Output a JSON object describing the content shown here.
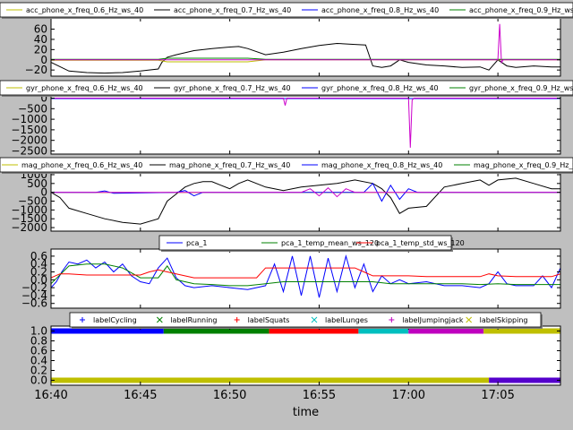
{
  "figure": {
    "background": "#bfbfbf",
    "axes_background": "#ffffff"
  },
  "chart_data": [
    {
      "type": "line",
      "id": "acc",
      "ylim": [
        -32,
        82
      ],
      "yticks": [
        -20,
        0,
        20,
        40,
        60
      ],
      "ytick_labels": [
        "−20",
        "0",
        "20",
        "40",
        "60"
      ],
      "legend": [
        {
          "name": "acc_phone_x_freq_0.6_Hz_ws_40",
          "color": "#bfbf00"
        },
        {
          "name": "acc_phone_x_freq_0.7_Hz_ws_40",
          "color": "#000000"
        },
        {
          "name": "acc_phone_x_freq_0.8_Hz_ws_40",
          "color": "#0000ff"
        },
        {
          "name": "acc_phone_x_freq_0.9_Hz_ws_40",
          "color": "#008000"
        }
      ],
      "series": [
        {
          "name": "acc_phone_x_freq_0.7_Hz_ws_40",
          "color": "#000000",
          "x": [
            0,
            1,
            2,
            3,
            4,
            5,
            6,
            6.2,
            6.5,
            7,
            8,
            9,
            10,
            10.5,
            11,
            12,
            13,
            14,
            15,
            16,
            17,
            17.6,
            18,
            18.5,
            19,
            19.5,
            20,
            21,
            22,
            23,
            24,
            24.5,
            25,
            25.5,
            26,
            27,
            28,
            28.5
          ],
          "y": [
            -5,
            -22,
            -25,
            -26,
            -25,
            -22,
            -18,
            -5,
            5,
            10,
            18,
            22,
            25,
            26,
            22,
            10,
            15,
            22,
            28,
            32,
            30,
            29,
            -12,
            -15,
            -12,
            0,
            -5,
            -10,
            -12,
            -15,
            -14,
            -20,
            0,
            -12,
            -15,
            -12,
            -14,
            -14
          ]
        },
        {
          "name": "acc_phone_x_freq_0.6_Hz_ws_40",
          "color": "#bfbf00",
          "x": [
            0,
            6,
            6.5,
            11,
            12,
            28.5
          ],
          "y": [
            -1,
            -1,
            -4,
            -4,
            0,
            0
          ]
        },
        {
          "name": "acc_phone_x_freq_0.9_Hz_ws_40",
          "color": "#008000",
          "x": [
            0,
            6,
            6.5,
            11,
            12,
            28.5
          ],
          "y": [
            1,
            1,
            3,
            3,
            1,
            1
          ]
        },
        {
          "name": "magenta",
          "color": "#cc00cc",
          "x": [
            0,
            25.0,
            25.1,
            25.2,
            25.3,
            28.5
          ],
          "y": [
            0,
            0,
            70,
            -5,
            0,
            0
          ]
        }
      ]
    },
    {
      "type": "line",
      "id": "gyr",
      "ylim": [
        -2650,
        150
      ],
      "yticks": [
        -2500,
        -2000,
        -1500,
        -1000,
        -500,
        0
      ],
      "ytick_labels": [
        "−2500",
        "−2000",
        "−1500",
        "−1000",
        "−500",
        "0"
      ],
      "legend": [
        {
          "name": "gyr_phone_x_freq_0.6_Hz_ws_40",
          "color": "#bfbf00"
        },
        {
          "name": "gyr_phone_x_freq_0.7_Hz_ws_40",
          "color": "#000000"
        },
        {
          "name": "gyr_phone_x_freq_0.8_Hz_ws_40",
          "color": "#0000ff"
        },
        {
          "name": "gyr_phone_x_freq_0.9_Hz_ws_40",
          "color": "#008000"
        }
      ],
      "series": [
        {
          "name": "gyr_phone_x_freq_0.8_Hz_ws_40",
          "color": "#0000ff",
          "x": [
            0,
            28.5
          ],
          "y": [
            -20,
            -20
          ]
        },
        {
          "name": "magenta",
          "color": "#cc00cc",
          "x": [
            0,
            13.0,
            13.1,
            13.2,
            20.0,
            20.1,
            20.2,
            20.3,
            28.5
          ],
          "y": [
            0,
            0,
            -350,
            0,
            0,
            -2350,
            -100,
            0,
            0
          ]
        }
      ]
    },
    {
      "type": "line",
      "id": "mag",
      "ylim": [
        -2200,
        1100
      ],
      "yticks": [
        -2000,
        -1500,
        -1000,
        -500,
        0,
        500,
        1000
      ],
      "ytick_labels": [
        "−2000",
        "−1500",
        "−1000",
        "−500",
        "0",
        "500",
        "1000"
      ],
      "legend": [
        {
          "name": "mag_phone_x_freq_0.6_Hz_ws_40",
          "color": "#bfbf00"
        },
        {
          "name": "mag_phone_x_freq_0.7_Hz_ws_40",
          "color": "#000000"
        },
        {
          "name": "mag_phone_x_freq_0.8_Hz_ws_40",
          "color": "#0000ff"
        },
        {
          "name": "mag_phone_x_freq_0.9_Hz_ws_40",
          "color": "#008000"
        }
      ],
      "series": [
        {
          "name": "mag_phone_x_freq_0.7_Hz_ws_40",
          "color": "#000000",
          "x": [
            0,
            0.5,
            1,
            2,
            3,
            4,
            5,
            6,
            6.5,
            7,
            7.5,
            8,
            8.5,
            9,
            9.5,
            10,
            10.5,
            11,
            12,
            13,
            14,
            15,
            16,
            17,
            18,
            18.5,
            19,
            19.5,
            20,
            21,
            22,
            23,
            24,
            24.5,
            25,
            26,
            27,
            28,
            28.5
          ],
          "y": [
            0,
            -300,
            -900,
            -1200,
            -1500,
            -1700,
            -1800,
            -1500,
            -500,
            -100,
            300,
            500,
            600,
            600,
            400,
            200,
            500,
            700,
            300,
            100,
            300,
            400,
            500,
            700,
            500,
            200,
            -300,
            -1200,
            -900,
            -800,
            300,
            500,
            700,
            400,
            700,
            800,
            500,
            200,
            200
          ]
        },
        {
          "name": "mag_phone_x_freq_0.6_Hz_ws_40",
          "color": "#bfbf00",
          "x": [
            0,
            28.5
          ],
          "y": [
            -10,
            -10
          ]
        },
        {
          "name": "mag_phone_x_freq_0.8_Hz_ws_40",
          "color": "#0000ff",
          "x": [
            0,
            2.5,
            3,
            3.5,
            7,
            7.5,
            8,
            8.5,
            17.5,
            18,
            18.5,
            19,
            19.5,
            20,
            20.5,
            28.5
          ],
          "y": [
            0,
            0,
            80,
            -60,
            0,
            100,
            -200,
            0,
            0,
            500,
            -500,
            400,
            -400,
            200,
            0,
            0
          ]
        },
        {
          "name": "magenta",
          "color": "#cc00cc",
          "x": [
            0,
            14,
            14.5,
            15,
            15.5,
            16,
            16.5,
            17,
            28.5
          ],
          "y": [
            0,
            0,
            200,
            -200,
            250,
            -250,
            200,
            0,
            0
          ]
        }
      ]
    },
    {
      "type": "line",
      "id": "pca",
      "ylim": [
        -0.72,
        0.78
      ],
      "yticks": [
        -0.6,
        -0.4,
        -0.2,
        0.0,
        0.2,
        0.4,
        0.6
      ],
      "ytick_labels": [
        "−0.6",
        "−0.4",
        "−0.2",
        "0.0",
        "0.2",
        "0.4",
        "0.6"
      ],
      "legend": [
        {
          "name": "pca_1",
          "color": "#0000ff"
        },
        {
          "name": "pca_1_temp_mean_ws_120",
          "color": "#008000"
        },
        {
          "name": "pca_1_temp_std_ws_120",
          "color": "#ff0000"
        }
      ],
      "series": [
        {
          "name": "pca_1",
          "color": "#0000ff",
          "x": [
            0,
            0.3,
            0.6,
            1,
            1.5,
            2,
            2.5,
            3,
            3.5,
            4,
            4.5,
            5,
            5.5,
            6,
            6.5,
            7,
            7.5,
            8,
            9,
            10,
            11,
            12,
            12.5,
            13,
            13.5,
            14,
            14.5,
            15,
            15.5,
            16,
            16.5,
            17,
            17.5,
            18,
            18.5,
            19,
            19.5,
            20,
            21,
            22,
            23,
            24,
            24.5,
            25,
            25.5,
            26,
            27,
            27.5,
            28,
            28.5
          ],
          "y": [
            -0.2,
            -0.05,
            0.2,
            0.45,
            0.4,
            0.5,
            0.3,
            0.45,
            0.2,
            0.4,
            0.1,
            -0.05,
            -0.1,
            0.3,
            0.55,
            0.05,
            -0.15,
            -0.2,
            -0.15,
            -0.2,
            -0.25,
            -0.15,
            0.4,
            -0.3,
            0.6,
            -0.4,
            0.6,
            -0.45,
            0.55,
            -0.3,
            0.6,
            -0.2,
            0.4,
            -0.3,
            0.1,
            -0.1,
            0.0,
            -0.1,
            -0.05,
            -0.15,
            -0.15,
            -0.2,
            -0.1,
            0.2,
            -0.1,
            -0.15,
            -0.15,
            0.1,
            -0.2,
            0.3
          ]
        },
        {
          "name": "pca_1_temp_mean_ws_120",
          "color": "#008000",
          "x": [
            0,
            1,
            2,
            3,
            4,
            5,
            6,
            6.5,
            7,
            8,
            9,
            10,
            11,
            12,
            13,
            14,
            15,
            16,
            17,
            18,
            19,
            20,
            21,
            22,
            23,
            24,
            25,
            26,
            27,
            28,
            28.5
          ],
          "y": [
            -0.1,
            0.35,
            0.4,
            0.4,
            0.3,
            0.05,
            0.05,
            0.35,
            0.0,
            -0.1,
            -0.12,
            -0.15,
            -0.15,
            -0.1,
            -0.05,
            -0.05,
            -0.05,
            -0.05,
            -0.05,
            -0.05,
            -0.1,
            -0.1,
            -0.1,
            -0.1,
            -0.1,
            -0.12,
            -0.1,
            -0.12,
            -0.12,
            -0.12,
            -0.12
          ]
        },
        {
          "name": "pca_1_temp_std_ws_120",
          "color": "#ff0000",
          "x": [
            0,
            0.5,
            1,
            2,
            3,
            4,
            5,
            5.5,
            6,
            7,
            8,
            9,
            10,
            11,
            11.5,
            12,
            12.5,
            13,
            14,
            15,
            16,
            17,
            17.5,
            18,
            19,
            20,
            21,
            22,
            23,
            24,
            24.5,
            25,
            26,
            27,
            28,
            28.5
          ],
          "y": [
            0.05,
            0.15,
            0.15,
            0.12,
            0.12,
            0.12,
            0.12,
            0.2,
            0.25,
            0.15,
            0.05,
            0.05,
            0.05,
            0.05,
            0.05,
            0.3,
            0.3,
            0.3,
            0.3,
            0.3,
            0.3,
            0.3,
            0.2,
            0.1,
            0.1,
            0.1,
            0.08,
            0.08,
            0.08,
            0.08,
            0.15,
            0.1,
            0.08,
            0.08,
            0.08,
            0.15
          ]
        }
      ]
    },
    {
      "type": "scatter",
      "id": "labels",
      "ylim": [
        -0.1,
        1.1
      ],
      "yticks": [
        0.0,
        0.2,
        0.4,
        0.6,
        0.8,
        1.0
      ],
      "ytick_labels": [
        "0.0",
        "0.2",
        "0.4",
        "0.6",
        "0.8",
        "1.0"
      ],
      "legend": [
        {
          "name": "labelCycling",
          "color": "#0000ff",
          "marker": "+"
        },
        {
          "name": "labelRunning",
          "color": "#008000",
          "marker": "x"
        },
        {
          "name": "labelSquats",
          "color": "#ff0000",
          "marker": "+"
        },
        {
          "name": "labelLunges",
          "color": "#00bfbf",
          "marker": "x"
        },
        {
          "name": "labelJumpingjack",
          "color": "#bf00bf",
          "marker": "+"
        },
        {
          "name": "labelSkipping",
          "color": "#bfbf00",
          "marker": "x"
        }
      ],
      "segments": [
        {
          "name": "labelCycling",
          "color": "#0000ff",
          "y": 1.0,
          "x0": 0.0,
          "x1": 6.3
        },
        {
          "name": "labelRunning",
          "color": "#008000",
          "y": 1.0,
          "x0": 6.3,
          "x1": 12.2
        },
        {
          "name": "labelSquats",
          "color": "#ff0000",
          "y": 1.0,
          "x0": 12.2,
          "x1": 17.2
        },
        {
          "name": "labelLunges",
          "color": "#00bfbf",
          "y": 1.0,
          "x0": 17.2,
          "x1": 20.0
        },
        {
          "name": "labelJumpingjack",
          "color": "#bf00bf",
          "y": 1.0,
          "x0": 20.0,
          "x1": 24.2
        },
        {
          "name": "labelSkipping",
          "color": "#bfbf00",
          "y": 1.0,
          "x0": 24.2,
          "x1": 28.5
        },
        {
          "name": "labelSkipping",
          "color": "#bfbf00",
          "y": 0.0,
          "x0": 0.0,
          "x1": 24.5
        },
        {
          "name": "labelJumpingjack",
          "color": "#5500cc",
          "y": 0.0,
          "x0": 24.5,
          "x1": 28.5
        }
      ]
    }
  ],
  "x_axis": {
    "label": "time",
    "domain_minutes": [
      0,
      28.5
    ],
    "ticks": [
      {
        "value": 0,
        "label": "16:40"
      },
      {
        "value": 5,
        "label": "16:45"
      },
      {
        "value": 10,
        "label": "16:50"
      },
      {
        "value": 15,
        "label": "16:55"
      },
      {
        "value": 20,
        "label": "17:00"
      },
      {
        "value": 25,
        "label": "17:05"
      }
    ]
  }
}
